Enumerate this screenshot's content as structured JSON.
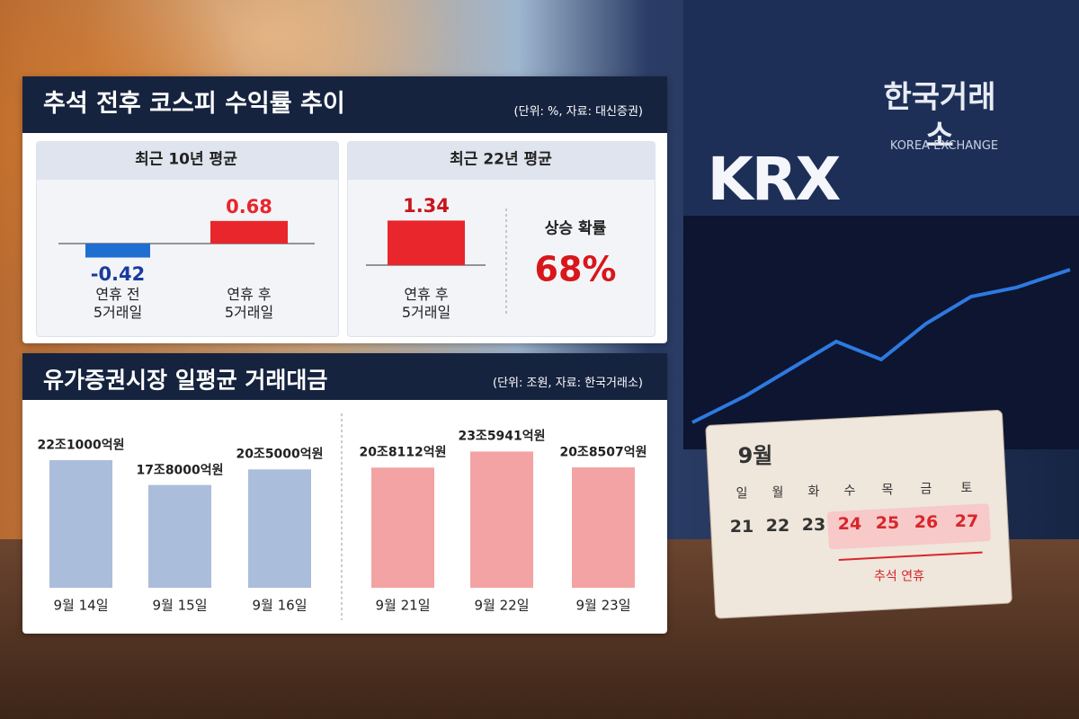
{
  "header": {
    "title": "추석 전후 코스피 수익률 추이",
    "note": "(단위: %, 자료: 대신증권)"
  },
  "chart_data": [
    {
      "type": "bar",
      "title": "최근 10년 평균",
      "categories": [
        "연휴 전\n5거래일",
        "연휴 후\n5거래일"
      ],
      "values": [
        -0.42,
        0.68
      ],
      "colors": [
        "#1f6fd1",
        "#e8262b"
      ],
      "label_colors": [
        "#1a3a9c",
        "#e8262b"
      ]
    },
    {
      "type": "bar",
      "title": "최근 22년 평균",
      "categories": [
        "연휴 후\n5거래일"
      ],
      "values": [
        1.34
      ],
      "colors": [
        "#e8262b"
      ],
      "label_colors": [
        "#c8161b"
      ],
      "annotation": {
        "label": "상승 확률",
        "value": 68,
        "value_label": "68%"
      }
    },
    {
      "type": "bar",
      "title": "유가증권시장 일평균 거래대금",
      "subtitle": "(단위: 조원, 자료: 한국거래소)",
      "categories": [
        "9월 14일",
        "9월 15일",
        "9월 16일",
        "9월 21일",
        "9월 22일",
        "9월 23일"
      ],
      "values": [
        22.1,
        17.8,
        20.5,
        20.8112,
        23.5941,
        20.8507
      ],
      "value_labels": [
        "22조1000억원",
        "17조8000억원",
        "20조5000억원",
        "20조8112억원",
        "23조5941억원",
        "20조8507억원"
      ],
      "colors": [
        "#aabddb",
        "#aabddb",
        "#aabddb",
        "#f3a3a3",
        "#f3a3a3",
        "#f3a3a3"
      ]
    }
  ],
  "background": {
    "sign": {
      "logo": "KRX",
      "name": "한국거래소",
      "english": "KOREA EXCHANGE"
    },
    "calendar": {
      "month": "9월",
      "weekdays": [
        "일",
        "월",
        "화",
        "수",
        "목",
        "금",
        "토"
      ],
      "days": [
        21,
        22,
        23,
        24,
        25,
        26,
        27
      ],
      "holidays": [
        24,
        25,
        26,
        27
      ],
      "holiday_label": "추석 연휴"
    }
  }
}
